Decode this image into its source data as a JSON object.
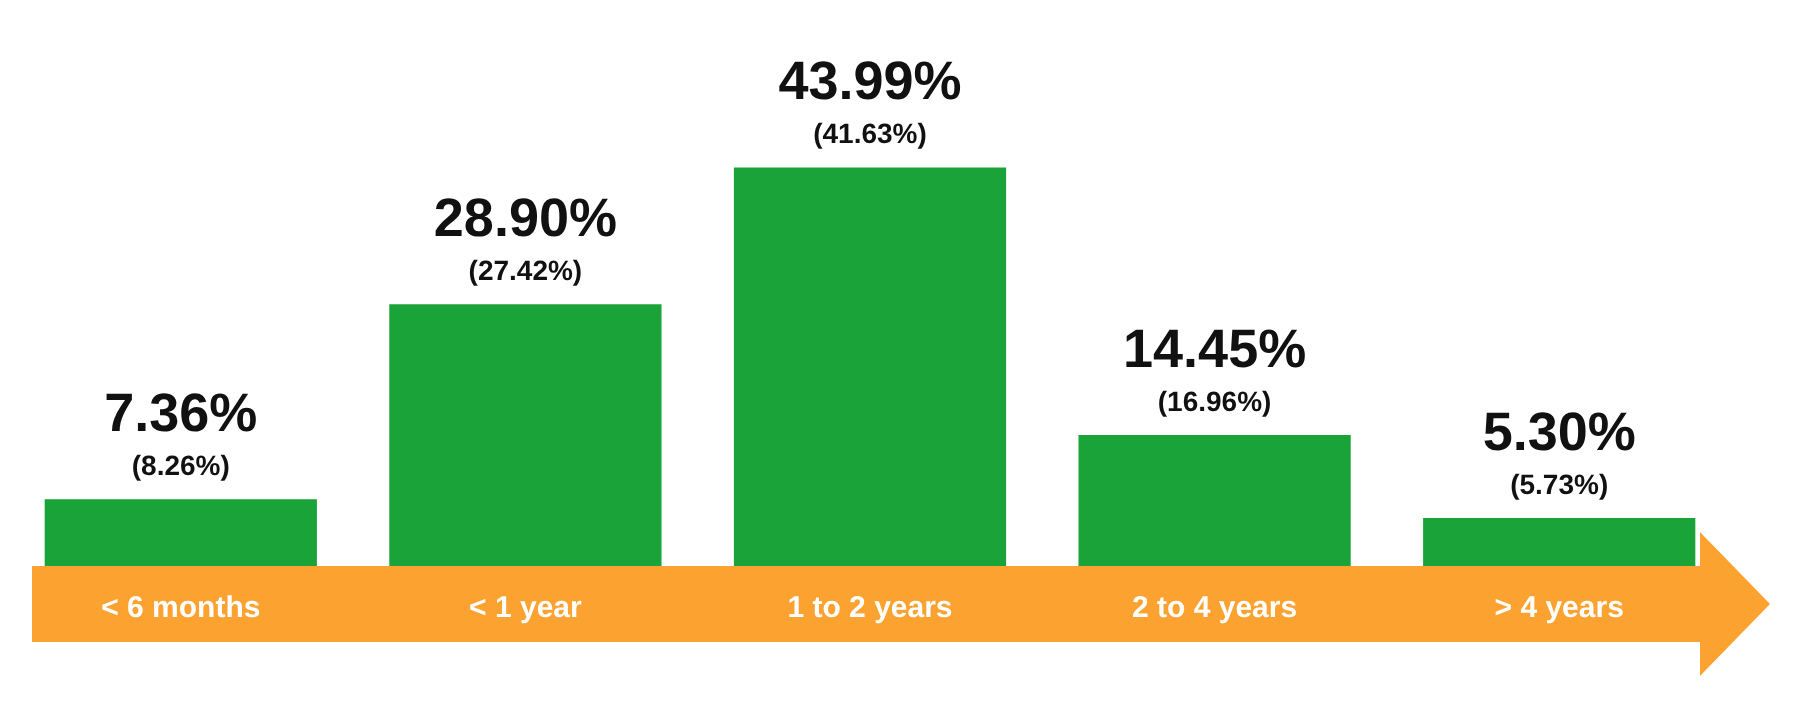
{
  "chart_data": {
    "type": "bar",
    "categories": [
      "< 6 months",
      "< 1 year",
      "1 to 2 years",
      "2 to 4 years",
      "> 4 years"
    ],
    "values": [
      7.36,
      28.9,
      43.99,
      14.45,
      5.3
    ],
    "color": "#1aa339",
    "value_labels": [
      "7.36%",
      "28.90%",
      "43.99%",
      "14.45%",
      "5.30%"
    ],
    "annotations": [
      {
        "text": "(8.26%)",
        "x": "< 6 months",
        "y": 7.36
      },
      {
        "text": "(27.42%)",
        "x": "< 1 year",
        "y": 28.9
      },
      {
        "text": "(41.63%)",
        "x": "1 to 2 years",
        "y": 43.99
      },
      {
        "text": "(16.96%)",
        "x": "2 to 4 years",
        "y": 14.45
      },
      {
        "text": "(5.73%)",
        "x": "> 4 years",
        "y": 5.3
      }
    ]
  }
}
